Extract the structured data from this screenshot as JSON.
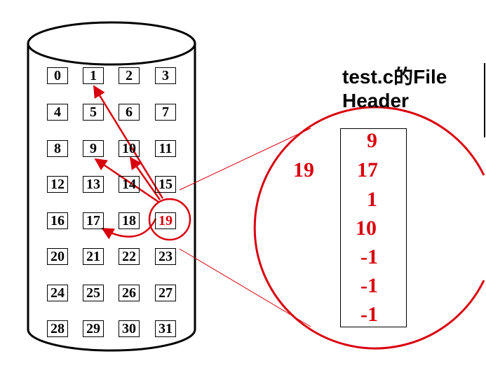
{
  "disk": {
    "blocks": [
      "0",
      "1",
      "2",
      "3",
      "4",
      "5",
      "6",
      "7",
      "8",
      "9",
      "10",
      "11",
      "12",
      "13",
      "14",
      "15",
      "16",
      "17",
      "18",
      "19",
      "20",
      "21",
      "22",
      "23",
      "24",
      "25",
      "26",
      "27",
      "28",
      "29",
      "30",
      "31"
    ],
    "highlighted_block": "19"
  },
  "file_header": {
    "title_line1": "test.c的File",
    "title_line2": "Header",
    "block_label": "19",
    "entries": [
      "9",
      "17",
      "1",
      "10",
      "-1",
      "-1",
      "-1"
    ]
  },
  "colors": {
    "accent": "#d9000d",
    "ink": "#000000"
  }
}
